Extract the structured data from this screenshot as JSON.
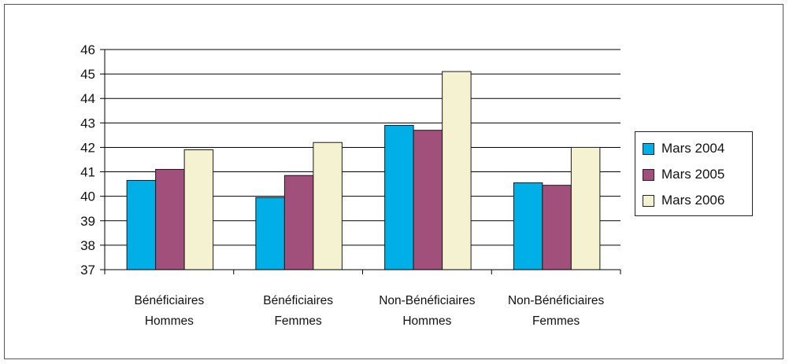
{
  "chart_data": {
    "type": "bar",
    "categories": [
      [
        "Bénéficiaires",
        "Hommes"
      ],
      [
        "Bénéficiaires",
        "Femmes"
      ],
      [
        "Non-Bénéficiaires",
        "Hommes"
      ],
      [
        "Non-Bénéficiaires",
        "Femmes"
      ]
    ],
    "series": [
      {
        "name": "Mars 2004",
        "color": "#00aee8",
        "values": [
          40.65,
          39.95,
          42.9,
          40.55
        ]
      },
      {
        "name": "Mars 2005",
        "color": "#a0507a",
        "values": [
          41.1,
          40.85,
          42.7,
          40.45
        ]
      },
      {
        "name": "Mars 2006",
        "color": "#f5f2d2",
        "values": [
          41.9,
          42.2,
          45.1,
          42.0
        ]
      }
    ],
    "yticks": [
      37,
      38,
      39,
      40,
      41,
      42,
      43,
      44,
      45,
      46
    ],
    "ylim": [
      37,
      46
    ],
    "grid": true,
    "legend_position": "right"
  }
}
